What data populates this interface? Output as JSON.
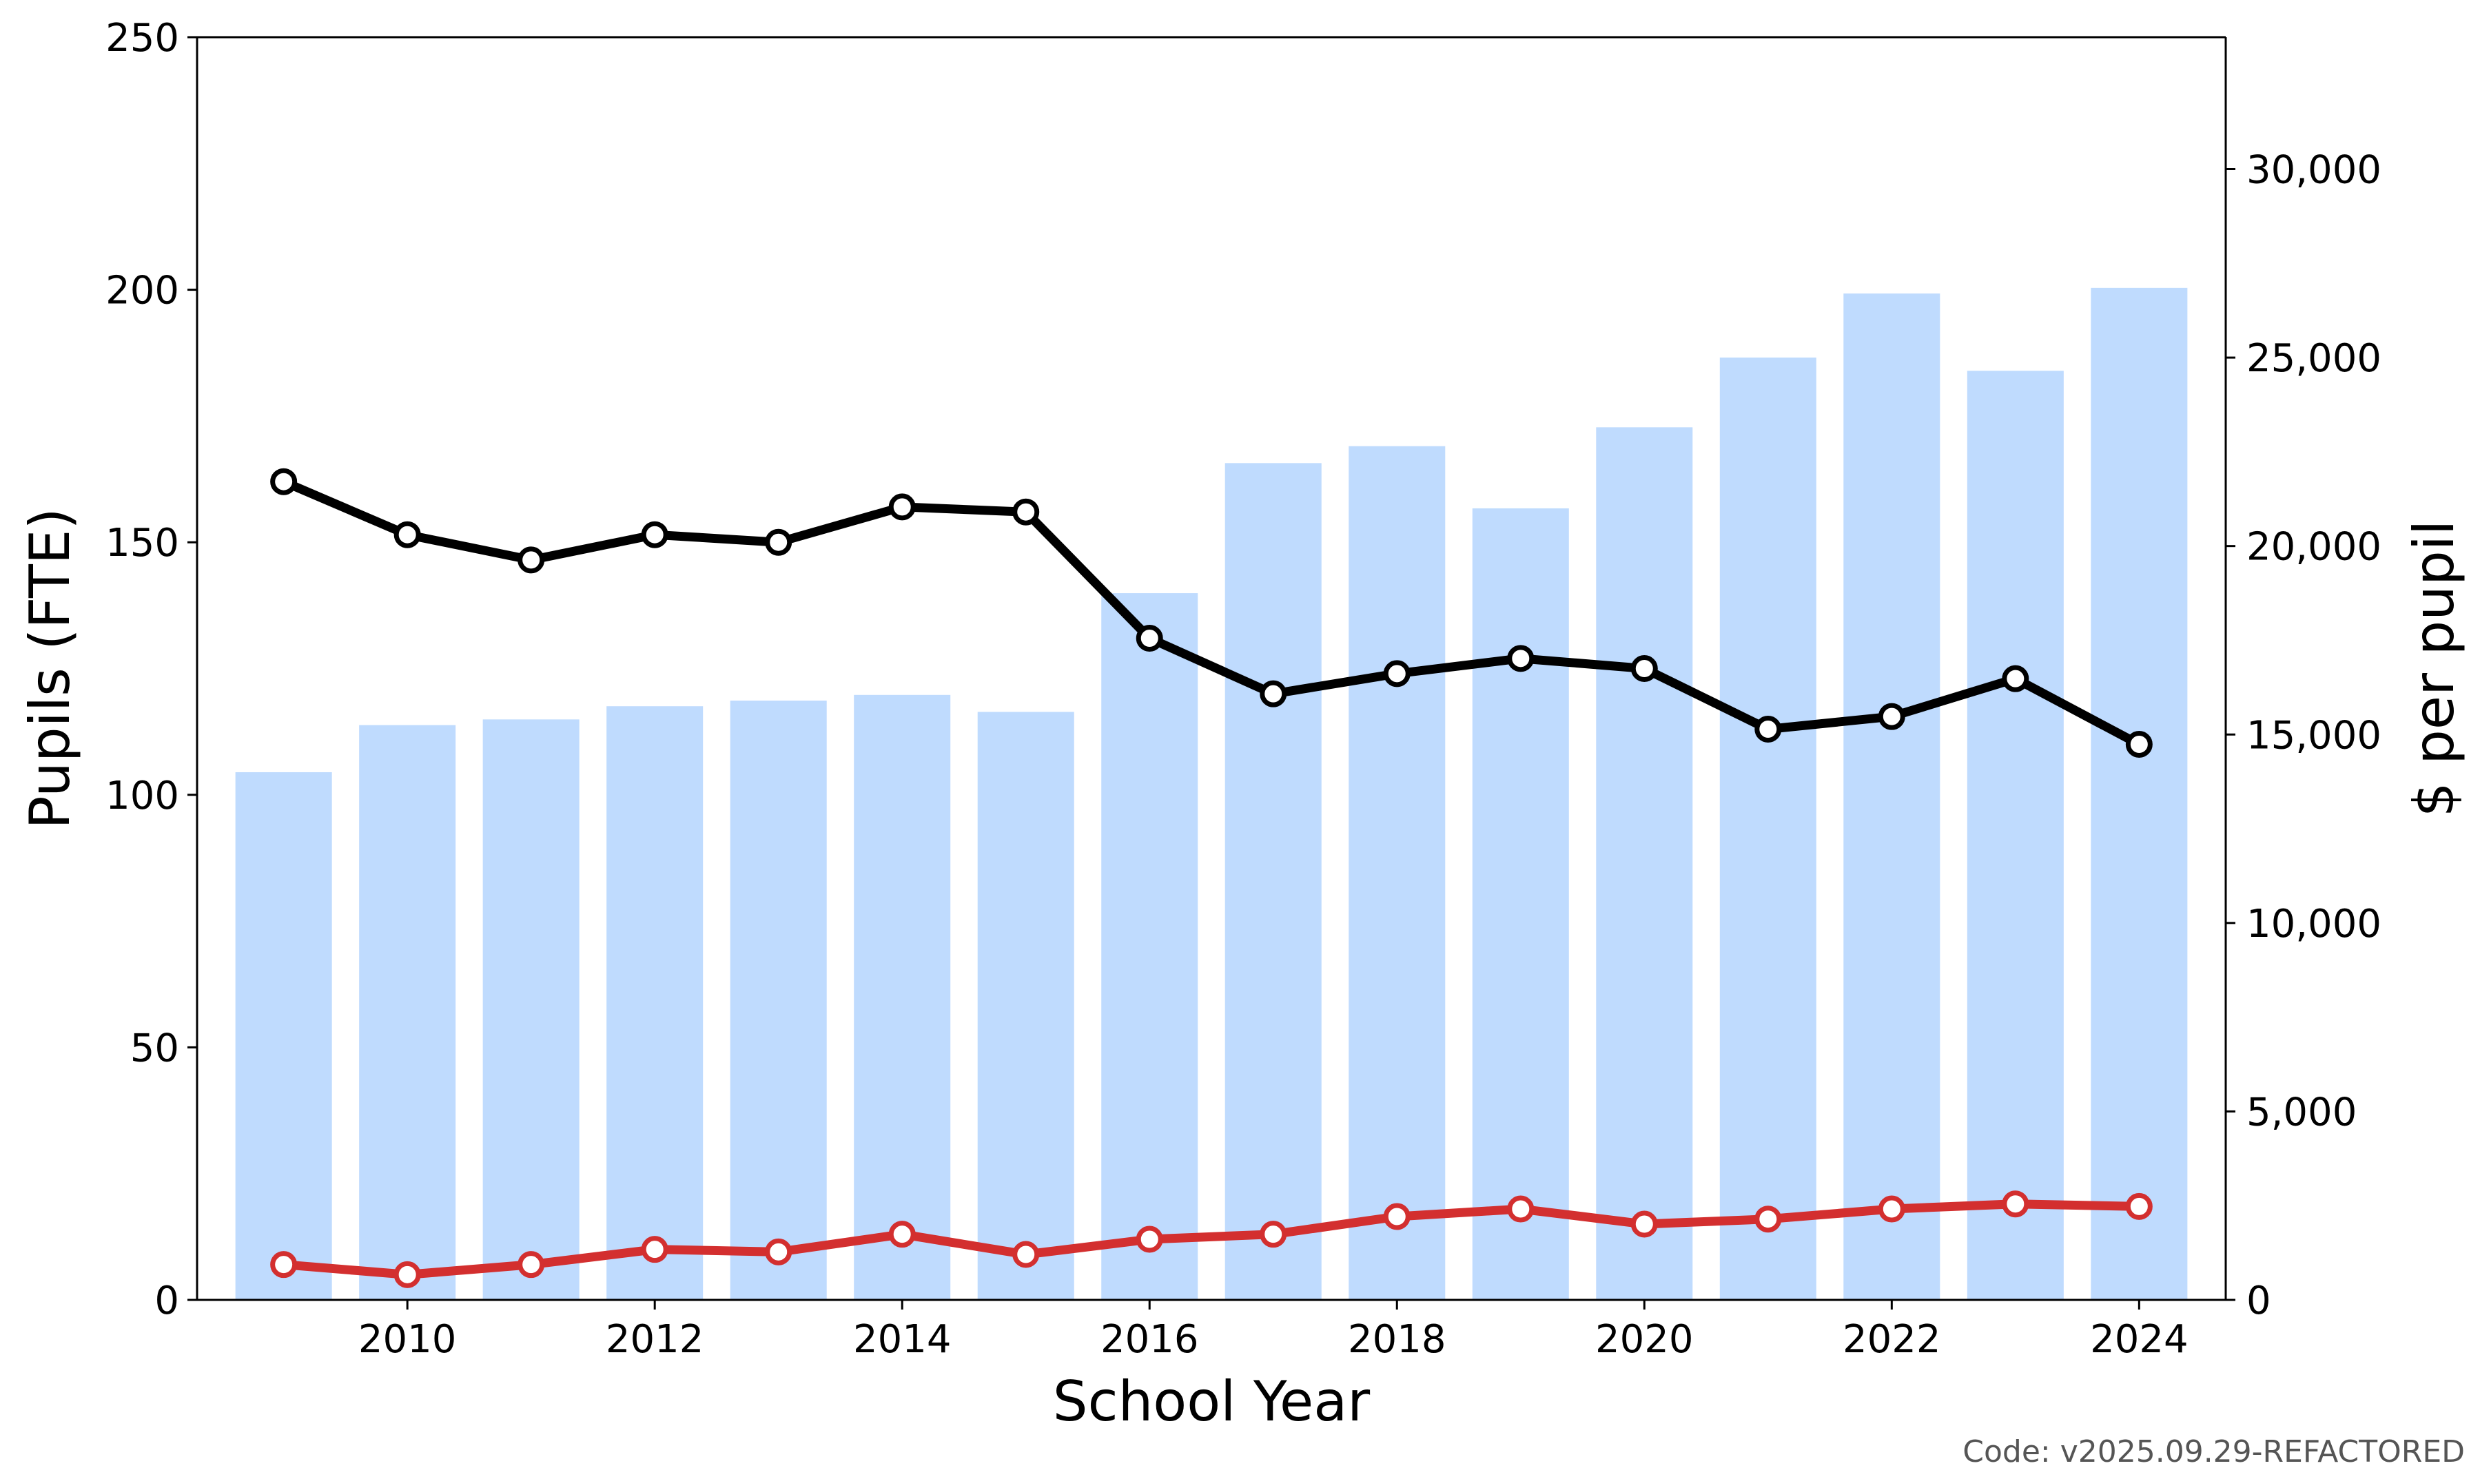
{
  "chart_data": {
    "type": "bar+line",
    "title": "",
    "xlabel": "School Year",
    "ylabel_left": "Pupils (FTE)",
    "ylabel_right": "$ per pupil",
    "x": [
      2009,
      2010,
      2011,
      2012,
      2013,
      2014,
      2015,
      2016,
      2017,
      2018,
      2019,
      2020,
      2021,
      2022,
      2023,
      2024
    ],
    "xticks": [
      2010,
      2012,
      2014,
      2016,
      2018,
      2020,
      2022,
      2024
    ],
    "xlim": [
      2008.3,
      2024.7
    ],
    "ylim_left": [
      0,
      250
    ],
    "yticks_left": [
      0,
      50,
      100,
      150,
      200,
      250
    ],
    "ylim_right": [
      0,
      33500
    ],
    "yticks_right": [
      0,
      5000,
      10000,
      15000,
      20000,
      25000,
      30000
    ],
    "yticks_right_labels": [
      "0",
      "5,000",
      "10,000",
      "15,000",
      "20,000",
      "25,000",
      "30,000"
    ],
    "grid": false,
    "series": [
      {
        "kind": "bar",
        "axis": "right",
        "color": "#bfdbfe",
        "values": [
          14000,
          15250,
          15400,
          15750,
          15900,
          16050,
          15600,
          18750,
          22200,
          22650,
          21000,
          23150,
          25000,
          26700,
          24650,
          26850
        ]
      },
      {
        "kind": "line",
        "axis": "left",
        "color": "#000000",
        "values": [
          162,
          151.5,
          146.5,
          151.5,
          150,
          157,
          156,
          131,
          120,
          124,
          127,
          125,
          113,
          115.5,
          123,
          110
        ]
      },
      {
        "kind": "line",
        "axis": "left",
        "color": "#d32f2f",
        "values": [
          7,
          5,
          7,
          10,
          9.5,
          13,
          9,
          12,
          13,
          16.5,
          18,
          15,
          16,
          18,
          19,
          18.5
        ]
      }
    ]
  },
  "footer": {
    "code_label": "Code: v2025.09.29-REFACTORED"
  }
}
